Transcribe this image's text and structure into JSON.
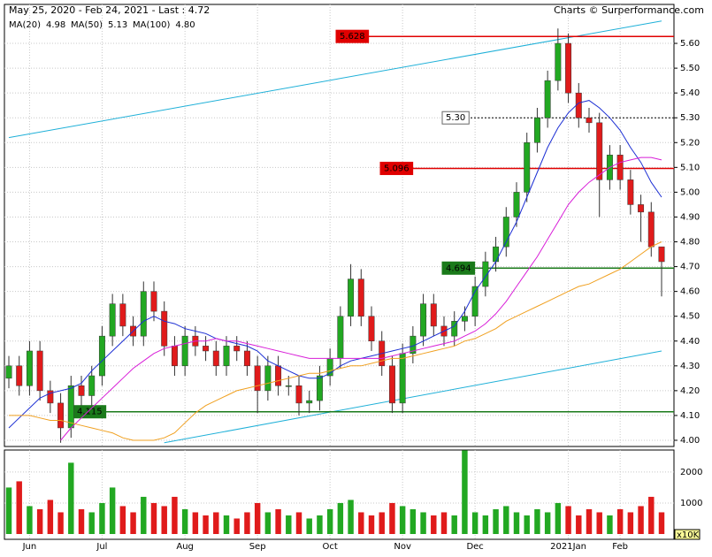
{
  "header": {
    "range": "May 25, 2020 - Feb 24, 2021 - Last : 4.72",
    "credit": "Charts © Surperformance.com"
  },
  "chart_data": {
    "type": "candlestick",
    "categories": [
      null,
      null,
      "Jun",
      null,
      null,
      null,
      null,
      null,
      null,
      "Jul",
      null,
      null,
      null,
      null,
      null,
      null,
      null,
      "Aug",
      null,
      null,
      null,
      null,
      null,
      null,
      "Sep",
      null,
      null,
      null,
      null,
      null,
      null,
      "Oct",
      null,
      null,
      null,
      null,
      null,
      null,
      "Nov",
      null,
      null,
      null,
      null,
      null,
      null,
      "Dec",
      null,
      null,
      null,
      null,
      null,
      null,
      null,
      null,
      "2021Jan",
      null,
      null,
      null,
      null,
      "Feb",
      null,
      null,
      null,
      null
    ],
    "open": [
      4.25,
      4.3,
      4.22,
      4.36,
      4.2,
      4.15,
      4.05,
      4.22,
      4.18,
      4.26,
      4.42,
      4.55,
      4.46,
      4.42,
      4.6,
      4.52,
      4.38,
      4.3,
      4.42,
      4.38,
      4.36,
      4.3,
      4.38,
      4.36,
      4.3,
      4.2,
      4.3,
      4.22,
      4.22,
      4.15,
      4.16,
      4.26,
      4.33,
      4.5,
      4.65,
      4.5,
      4.4,
      4.3,
      4.15,
      4.35,
      4.42,
      4.55,
      4.46,
      4.42,
      4.48,
      4.5,
      4.62,
      4.72,
      4.78,
      4.9,
      5.0,
      5.2,
      5.3,
      5.45,
      5.6,
      5.4,
      5.3,
      5.28,
      5.05,
      5.15,
      5.05,
      4.95,
      4.92,
      4.78
    ],
    "high": [
      4.34,
      4.34,
      4.4,
      4.4,
      4.24,
      4.19,
      4.26,
      4.26,
      4.3,
      4.46,
      4.59,
      4.59,
      4.5,
      4.64,
      4.64,
      4.56,
      4.42,
      4.46,
      4.46,
      4.42,
      4.4,
      4.42,
      4.42,
      4.4,
      4.34,
      4.34,
      4.34,
      4.26,
      4.26,
      4.2,
      4.3,
      4.37,
      4.54,
      4.71,
      4.69,
      4.54,
      4.44,
      4.34,
      4.39,
      4.46,
      4.59,
      4.59,
      4.5,
      4.52,
      4.54,
      4.66,
      4.76,
      4.82,
      4.94,
      5.04,
      5.24,
      5.34,
      5.49,
      5.66,
      5.64,
      5.44,
      5.34,
      5.32,
      5.19,
      5.19,
      5.09,
      4.99,
      4.96,
      4.78
    ],
    "low": [
      4.21,
      4.18,
      4.18,
      4.16,
      4.11,
      3.99,
      4.01,
      4.14,
      4.14,
      4.22,
      4.38,
      4.42,
      4.38,
      4.38,
      4.48,
      4.34,
      4.26,
      4.26,
      4.34,
      4.32,
      4.26,
      4.26,
      4.32,
      4.26,
      4.11,
      4.16,
      4.18,
      4.18,
      4.1,
      4.11,
      4.12,
      4.22,
      4.29,
      4.46,
      4.46,
      4.36,
      4.26,
      4.11,
      4.11,
      4.31,
      4.38,
      4.42,
      4.38,
      4.38,
      4.44,
      4.46,
      4.58,
      4.68,
      4.74,
      4.86,
      4.96,
      5.16,
      5.26,
      5.41,
      5.36,
      5.26,
      5.24,
      4.9,
      5.01,
      5.01,
      4.91,
      4.8,
      4.74,
      4.58
    ],
    "close": [
      4.3,
      4.22,
      4.36,
      4.2,
      4.15,
      4.05,
      4.22,
      4.18,
      4.26,
      4.42,
      4.55,
      4.46,
      4.42,
      4.6,
      4.52,
      4.38,
      4.3,
      4.42,
      4.38,
      4.36,
      4.3,
      4.38,
      4.36,
      4.3,
      4.2,
      4.3,
      4.22,
      4.22,
      4.15,
      4.16,
      4.26,
      4.33,
      4.5,
      4.65,
      4.5,
      4.4,
      4.3,
      4.15,
      4.35,
      4.42,
      4.55,
      4.46,
      4.42,
      4.48,
      4.5,
      4.62,
      4.72,
      4.78,
      4.9,
      5.0,
      5.2,
      5.3,
      5.45,
      5.6,
      5.4,
      5.3,
      5.28,
      5.05,
      5.15,
      5.05,
      4.95,
      4.92,
      4.78,
      4.72
    ],
    "up_color": "#22a822",
    "down_color": "#e01b1b",
    "ylim": [
      3.975,
      5.757
    ],
    "yticks": [
      {
        "value": 4.0,
        "label": "4.00"
      },
      {
        "value": 4.1,
        "label": "4.10"
      },
      {
        "value": 4.2,
        "label": "4.20"
      },
      {
        "value": 4.3,
        "label": "4.30"
      },
      {
        "value": 4.4,
        "label": "4.40"
      },
      {
        "value": 4.5,
        "label": "4.50"
      },
      {
        "value": 4.6,
        "label": "4.60"
      },
      {
        "value": 4.7,
        "label": "4.70"
      },
      {
        "value": 4.8,
        "label": "4.80"
      },
      {
        "value": 4.9,
        "label": "4.90"
      },
      {
        "value": 5.0,
        "label": "5.00"
      },
      {
        "value": 5.1,
        "label": "5.10"
      },
      {
        "value": 5.2,
        "label": "5.20"
      },
      {
        "value": 5.3,
        "label": "5.30"
      },
      {
        "value": 5.4,
        "label": "5.40"
      },
      {
        "value": 5.5,
        "label": "5.50"
      },
      {
        "value": 5.6,
        "label": "5.60"
      }
    ],
    "grid": true,
    "moving_averages": [
      {
        "name": "MA(20)",
        "last": "4.98",
        "color": "#1c2fd4",
        "values": [
          4.05,
          4.09,
          4.13,
          4.17,
          4.19,
          4.2,
          4.21,
          4.23,
          4.28,
          4.32,
          4.36,
          4.4,
          4.44,
          4.48,
          4.5,
          4.48,
          4.47,
          4.45,
          4.44,
          4.43,
          4.41,
          4.4,
          4.39,
          4.38,
          4.36,
          4.32,
          4.3,
          4.28,
          4.26,
          4.25,
          4.25,
          4.27,
          4.3,
          4.32,
          4.33,
          4.34,
          4.35,
          4.36,
          4.37,
          4.38,
          4.4,
          4.42,
          4.44,
          4.46,
          4.52,
          4.6,
          4.66,
          4.72,
          4.8,
          4.88,
          4.98,
          5.08,
          5.18,
          5.26,
          5.32,
          5.36,
          5.37,
          5.34,
          5.3,
          5.25,
          5.18,
          5.12,
          5.04,
          4.98
        ]
      },
      {
        "name": "MA(50)",
        "last": "5.13",
        "color": "#d81ed8",
        "values": [
          null,
          null,
          null,
          null,
          null,
          4.0,
          4.05,
          4.09,
          4.13,
          4.17,
          4.21,
          4.25,
          4.29,
          4.32,
          4.35,
          4.37,
          4.38,
          4.39,
          4.4,
          4.4,
          4.41,
          4.4,
          4.4,
          4.39,
          4.38,
          4.37,
          4.36,
          4.35,
          4.34,
          4.33,
          4.33,
          4.33,
          4.33,
          4.33,
          4.33,
          4.33,
          4.33,
          4.34,
          4.35,
          4.36,
          4.37,
          4.38,
          4.39,
          4.4,
          4.42,
          4.44,
          4.47,
          4.51,
          4.56,
          4.62,
          4.68,
          4.74,
          4.81,
          4.88,
          4.95,
          5.0,
          5.04,
          5.07,
          5.1,
          5.12,
          5.13,
          5.14,
          5.14,
          5.13
        ]
      },
      {
        "name": "MA(100)",
        "last": "4.80",
        "color": "#f0a020",
        "values": [
          4.1,
          4.1,
          4.1,
          4.09,
          4.08,
          4.08,
          4.07,
          4.06,
          4.05,
          4.04,
          4.03,
          4.01,
          4.0,
          4.0,
          4.0,
          4.01,
          4.03,
          4.07,
          4.11,
          4.14,
          4.16,
          4.18,
          4.2,
          4.21,
          4.22,
          4.23,
          4.24,
          4.25,
          4.26,
          4.27,
          4.27,
          4.28,
          4.29,
          4.3,
          4.3,
          4.31,
          4.32,
          4.33,
          4.33,
          4.34,
          4.35,
          4.36,
          4.37,
          4.38,
          4.4,
          4.41,
          4.43,
          4.45,
          4.48,
          4.5,
          4.52,
          4.54,
          4.56,
          4.58,
          4.6,
          4.62,
          4.63,
          4.65,
          4.67,
          4.69,
          4.72,
          4.75,
          4.78,
          4.8
        ]
      }
    ],
    "levels": [
      {
        "value": 5.628,
        "label": "5.628",
        "color": "#e00000",
        "box": "#e00000",
        "dashed": false
      },
      {
        "value": 5.3,
        "label": "5.30",
        "color": "#000000",
        "box": "#ffffff",
        "dashed": true
      },
      {
        "value": 5.096,
        "label": "5.096",
        "color": "#e00000",
        "box": "#e00000",
        "dashed": false
      },
      {
        "value": 4.694,
        "label": "4.694",
        "color": "#1a7a1a",
        "box": "#1a7a1a",
        "dashed": false
      },
      {
        "value": 4.115,
        "label": "4.115",
        "color": "#1a7a1a",
        "box": "#1a7a1a",
        "dashed": false
      }
    ],
    "trendlines": [
      {
        "x": [
          0,
          63
        ],
        "y": [
          5.22,
          5.69
        ],
        "color": "#1fb0d8"
      },
      {
        "x": [
          15,
          63
        ],
        "y": [
          3.99,
          4.36
        ],
        "color": "#1fb0d8"
      }
    ],
    "volume": {
      "values": [
        1500,
        1700,
        900,
        800,
        1100,
        700,
        2300,
        800,
        700,
        1000,
        1500,
        900,
        700,
        1200,
        1000,
        900,
        1200,
        800,
        700,
        600,
        700,
        600,
        500,
        700,
        1000,
        700,
        800,
        600,
        700,
        500,
        600,
        800,
        1000,
        1100,
        700,
        600,
        700,
        1000,
        900,
        800,
        700,
        600,
        700,
        600,
        2700,
        700,
        600,
        800,
        900,
        700,
        600,
        800,
        700,
        1000,
        900,
        600,
        800,
        700,
        600,
        800,
        700,
        900,
        1200,
        700
      ],
      "ylim": [
        0,
        2710
      ],
      "yticks": [
        1000,
        2000
      ],
      "unit": "x10K"
    }
  }
}
